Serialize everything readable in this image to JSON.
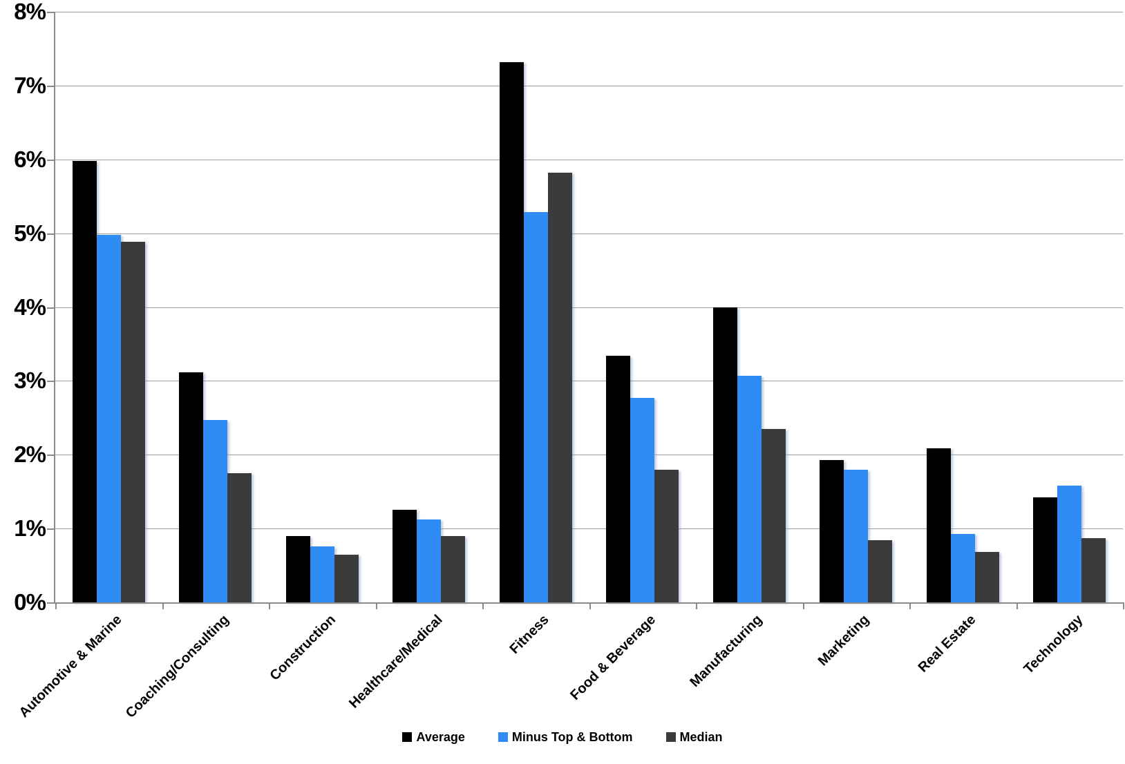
{
  "chart_data": {
    "type": "bar",
    "title": "",
    "xlabel": "",
    "ylabel": "",
    "categories": [
      "Automotive & Marine",
      "Coaching/Consulting",
      "Construction",
      "Healthcare/Medical",
      "Fitness",
      "Food & Beverage",
      "Manufacturing",
      "Marketing",
      "Real Estate",
      "Technology"
    ],
    "series": [
      {
        "name": "Average",
        "color": "#000000",
        "values": [
          5.98,
          3.12,
          0.9,
          1.25,
          7.32,
          3.34,
          4.0,
          1.93,
          2.09,
          1.42
        ]
      },
      {
        "name": "Minus Top & Bottom",
        "color": "#2F8CF4",
        "values": [
          4.98,
          2.47,
          0.76,
          1.12,
          5.29,
          2.77,
          3.07,
          1.8,
          0.93,
          1.58
        ]
      },
      {
        "name": "Median",
        "color": "#3B3B3C",
        "values": [
          4.88,
          1.75,
          0.65,
          0.9,
          5.82,
          1.8,
          2.35,
          0.84,
          0.68,
          0.87
        ]
      }
    ],
    "ylim": [
      0,
      8
    ],
    "y_tick_labels": [
      "0%",
      "1%",
      "2%",
      "3%",
      "4%",
      "5%",
      "6%",
      "7%",
      "8%"
    ],
    "grid": "horizontal",
    "legend_position": "bottom",
    "colors": {
      "background": "#FFFFFF",
      "gridline": "#9D9D9D",
      "axis": "#8A8A8A",
      "text": "#000000"
    }
  }
}
